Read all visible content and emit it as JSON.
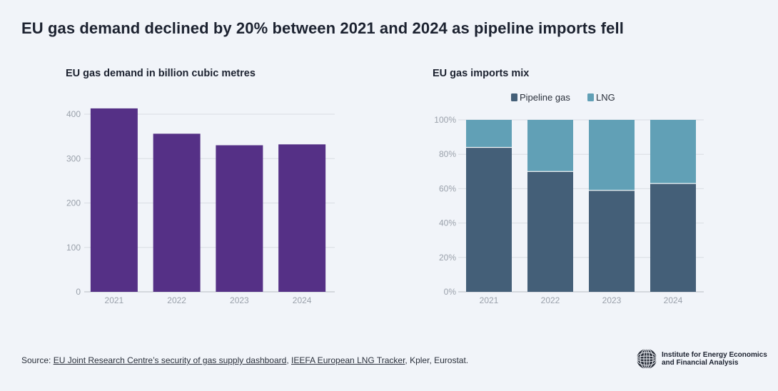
{
  "title": "EU gas demand declined by 20% between 2021 and 2024 as pipeline imports fell",
  "chart_data": [
    {
      "type": "bar",
      "title": "EU gas demand in billion cubic metres",
      "categories": [
        "2021",
        "2022",
        "2023",
        "2024"
      ],
      "values": [
        413,
        356,
        330,
        332
      ],
      "ylim": [
        0,
        400
      ],
      "yticks": [
        0,
        100,
        200,
        300,
        400
      ],
      "xlabel": "",
      "ylabel": "",
      "color": "#553086"
    },
    {
      "type": "bar",
      "stacked": true,
      "title": "EU gas imports mix",
      "categories": [
        "2021",
        "2022",
        "2023",
        "2024"
      ],
      "series": [
        {
          "name": "Pipeline gas",
          "values": [
            84,
            70,
            59,
            63
          ],
          "color": "#445f78"
        },
        {
          "name": "LNG",
          "values": [
            16,
            30,
            41,
            37
          ],
          "color": "#61a0b6"
        }
      ],
      "ylim": [
        0,
        100
      ],
      "yticks": [
        "0%",
        "20%",
        "40%",
        "60%",
        "80%",
        "100%"
      ],
      "legend": "top-center"
    }
  ],
  "footer": {
    "prefix": "Source: ",
    "link1": "EU Joint Research Centre’s security of gas supply dashboard",
    "sep": ", ",
    "link2": "IEEFA European LNG Tracker",
    "suffix": ", Kpler, Eurostat."
  },
  "logo": {
    "line1": "Institute for Energy Economics",
    "line2": "and Financial Analysis"
  }
}
